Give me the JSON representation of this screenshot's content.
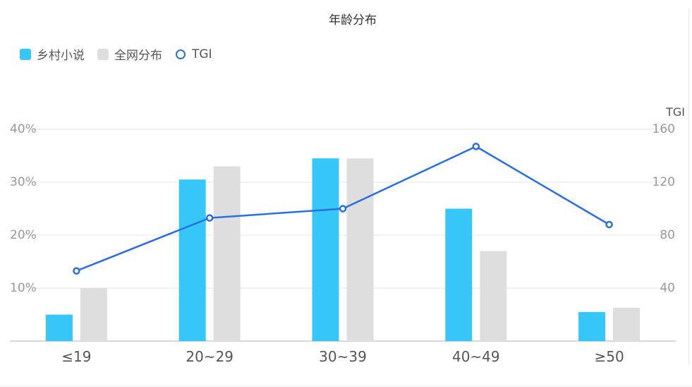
{
  "chart_data": {
    "type": "bar",
    "title": "年龄分布",
    "categories": [
      "≤19",
      "20~29",
      "30~39",
      "40~49",
      "≥50"
    ],
    "series": [
      {
        "name": "乡村小说",
        "type": "bar",
        "axis": "left",
        "color": "#36c6f8",
        "values": [
          5,
          30.5,
          34.5,
          25,
          5.5
        ]
      },
      {
        "name": "全网分布",
        "type": "bar",
        "axis": "left",
        "color": "#dedede",
        "values": [
          10,
          33,
          34.5,
          17,
          6.3
        ]
      },
      {
        "name": "TGI",
        "type": "line",
        "axis": "right",
        "color": "#2a6fe0",
        "values": [
          53,
          93,
          100,
          147,
          88
        ]
      }
    ],
    "left_axis": {
      "ticks": [
        "10%",
        "20%",
        "30%",
        "40%"
      ],
      "ylim": [
        0,
        40
      ]
    },
    "right_axis": {
      "label": "TGI",
      "ticks": [
        "40",
        "80",
        "120",
        "160"
      ],
      "ylim": [
        0,
        160
      ]
    },
    "grid": true,
    "legend_position": "top-left"
  }
}
